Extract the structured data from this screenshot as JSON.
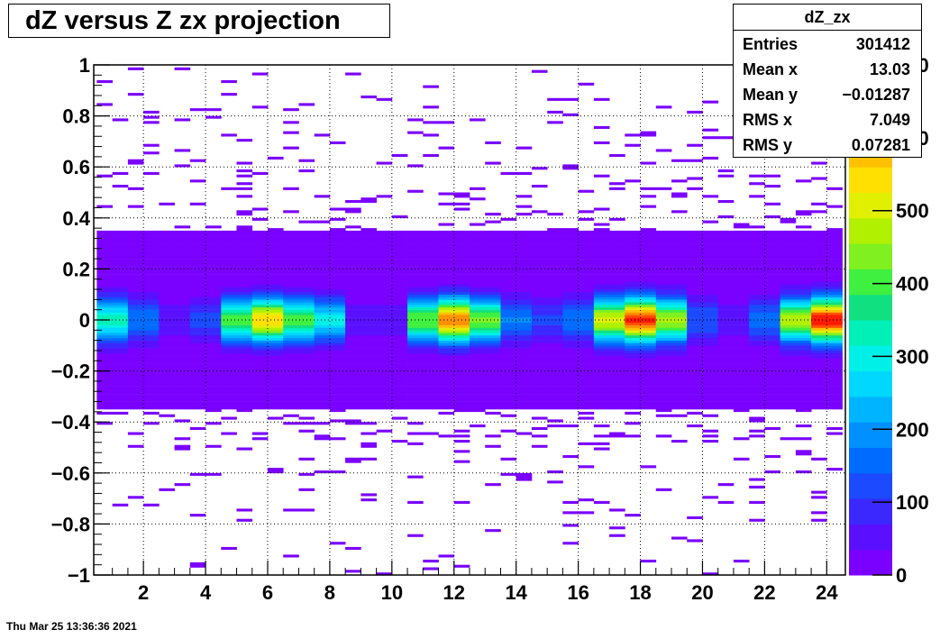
{
  "title": "dZ  versus Z zx projection",
  "stats": {
    "name": "dZ_zx",
    "rows": [
      {
        "label": "Entries",
        "value": "301412"
      },
      {
        "label": "Mean x",
        "value": "13.03"
      },
      {
        "label": "Mean y",
        "value": "−0.01287"
      },
      {
        "label": "RMS x",
        "value": "7.049"
      },
      {
        "label": "RMS y",
        "value": "0.07281"
      }
    ]
  },
  "timestamp": "Thu Mar 25 13:36:36 2021",
  "chart_data": {
    "type": "heatmap",
    "title": "dZ  versus Z zx projection",
    "xlabel": "",
    "ylabel": "",
    "xlim": [
      0.4,
      24.6
    ],
    "ylim": [
      -1,
      1
    ],
    "x_ticks": [
      2,
      4,
      6,
      8,
      10,
      12,
      14,
      16,
      18,
      20,
      22,
      24
    ],
    "y_ticks": [
      -1,
      -0.8,
      -0.6,
      -0.4,
      -0.2,
      0,
      0.2,
      0.4,
      0.6,
      0.8,
      1
    ],
    "y_tick_labels": [
      "−1",
      "−0.8",
      "−0.6",
      "−0.4",
      "−0.2",
      "0",
      "0.2",
      "0.4",
      "0.6",
      "0.8",
      "1"
    ],
    "grid": true,
    "colorbar": {
      "range": [
        0,
        700
      ],
      "ticks": [
        0,
        100,
        200,
        300,
        400,
        500,
        600,
        700
      ],
      "tick_labels": [
        "0",
        "100",
        "200",
        "300",
        "400",
        "500",
        "600",
        "700"
      ]
    },
    "z_bins": [
      {
        "x": 1.0,
        "peak": 330
      },
      {
        "x": 2.0,
        "peak": 170
      },
      {
        "x": 3.0,
        "peak": 60
      },
      {
        "x": 4.0,
        "peak": 120
      },
      {
        "x": 5.0,
        "peak": 400
      },
      {
        "x": 6.0,
        "peak": 560
      },
      {
        "x": 7.0,
        "peak": 400
      },
      {
        "x": 8.0,
        "peak": 290
      },
      {
        "x": 9.0,
        "peak": 60
      },
      {
        "x": 10.0,
        "peak": 55
      },
      {
        "x": 11.0,
        "peak": 420
      },
      {
        "x": 12.0,
        "peak": 620
      },
      {
        "x": 13.0,
        "peak": 430
      },
      {
        "x": 14.0,
        "peak": 180
      },
      {
        "x": 15.0,
        "peak": 110
      },
      {
        "x": 16.0,
        "peak": 170
      },
      {
        "x": 17.0,
        "peak": 500
      },
      {
        "x": 18.0,
        "peak": 680
      },
      {
        "x": 19.0,
        "peak": 460
      },
      {
        "x": 20.0,
        "peak": 140
      },
      {
        "x": 21.0,
        "peak": 55
      },
      {
        "x": 22.0,
        "peak": 160
      },
      {
        "x": 23.0,
        "peak": 470
      },
      {
        "x": 24.0,
        "peak": 690
      }
    ],
    "dz_profile": {
      "core_width": 0.06,
      "band_halfwidth": 0.35,
      "outlier_extent": 1.0
    }
  }
}
